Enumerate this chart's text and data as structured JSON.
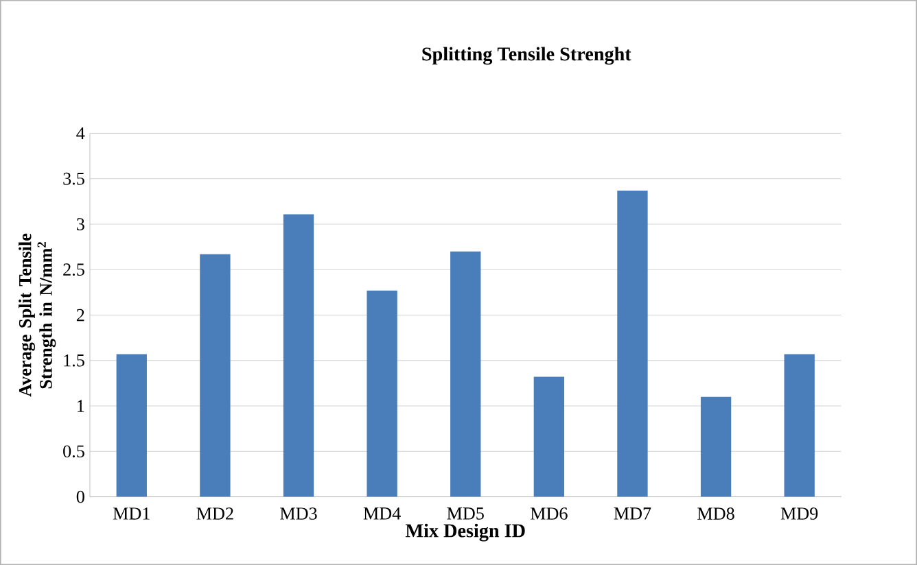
{
  "chart_data": {
    "type": "bar",
    "title": "Splitting Tensile Strenght",
    "xlabel": "Mix Design ID",
    "ylabel": "Average Split Tensile Strength in N/mm$^{2}$",
    "categories": [
      "MD1",
      "MD2",
      "MD3",
      "MD4",
      "MD5",
      "MD6",
      "MD7",
      "MD8",
      "MD9"
    ],
    "values": [
      1.57,
      2.67,
      3.11,
      2.27,
      2.7,
      1.32,
      3.37,
      1.1,
      1.57
    ],
    "color": "#4a7ebb",
    "ylim": [
      0,
      4
    ],
    "yticks": [
      0,
      0.5,
      1,
      1.5,
      2,
      2.5,
      3,
      3.5,
      4
    ],
    "grid": "y"
  }
}
